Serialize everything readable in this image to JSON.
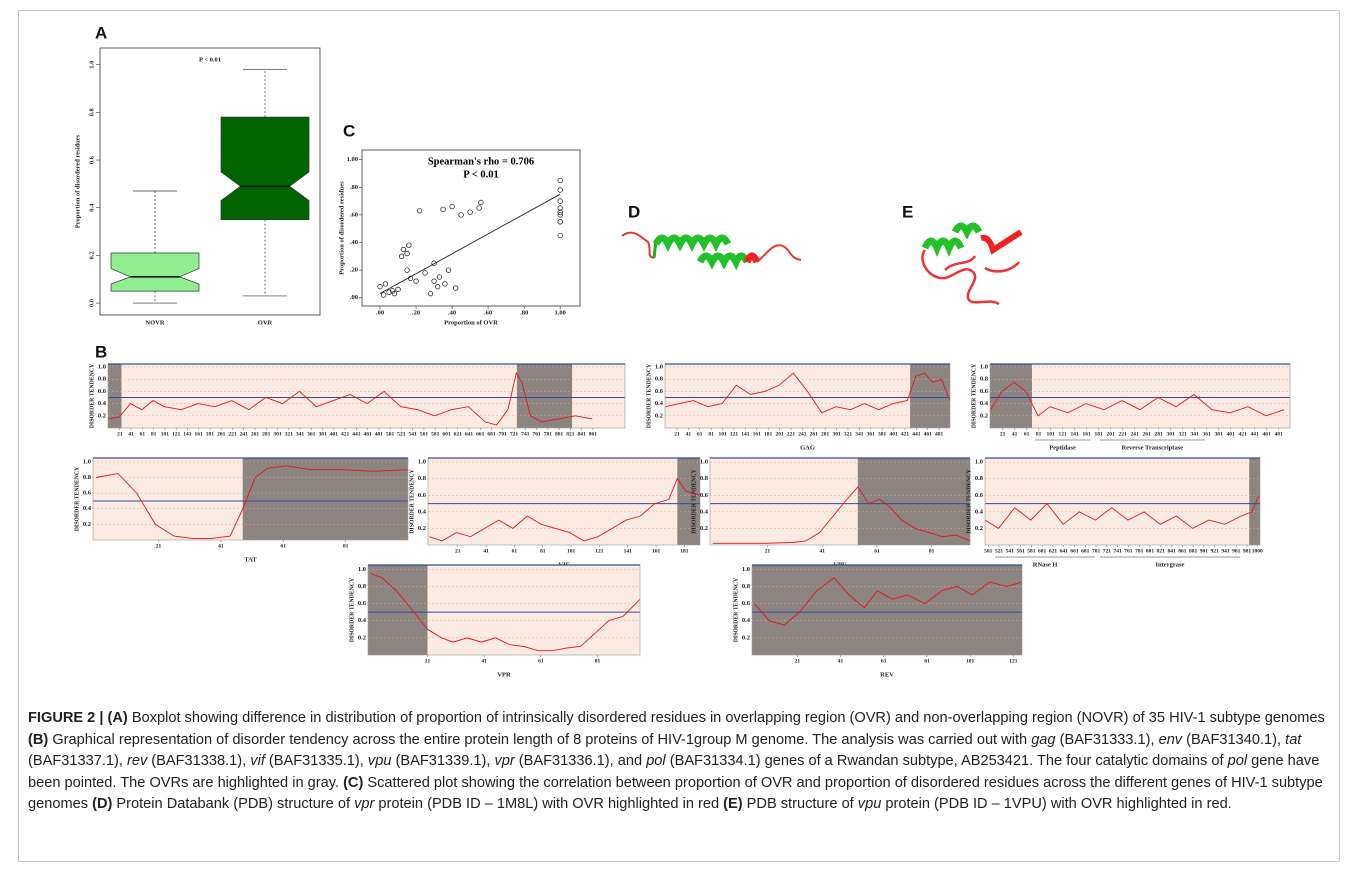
{
  "panel_labels": [
    "A",
    "B",
    "C",
    "D",
    "E"
  ],
  "chart_data": [
    {
      "type": "box",
      "ylabel": "Proportion of disordered residues",
      "annotation": "P < 0.01",
      "ylim": [
        -0.05,
        1.07
      ],
      "yticks": [
        {
          "value": 0,
          "label": "0.0"
        },
        0.2,
        0.4,
        0.6,
        0.8,
        {
          "value": 1,
          "label": "1.0"
        }
      ],
      "series": [
        {
          "name": "NOVR",
          "color": "#90ee90",
          "whisker_low": 0.0,
          "q1": 0.05,
          "median": 0.11,
          "q3": 0.21,
          "whisker_high": 0.47,
          "notch": [
            0.08,
            0.145
          ]
        },
        {
          "name": "OVR",
          "color": "#006400",
          "whisker_low": 0.03,
          "q1": 0.35,
          "median": 0.49,
          "q3": 0.78,
          "whisker_high": 0.98,
          "notch": [
            0.43,
            0.55
          ]
        }
      ]
    },
    {
      "type": "scatter",
      "title": "Spearman's rho = 0.706",
      "subtitle": "P < 0.01",
      "xlabel": "Proportion of OVR",
      "ylabel": "Proportion of disordered residues",
      "xlim": [
        -0.1,
        1.11
      ],
      "ylim": [
        -0.06,
        1.07
      ],
      "xticks": [
        {
          "value": 0,
          "label": ".00"
        },
        {
          "value": 0.2,
          "label": ".20"
        },
        {
          "value": 0.4,
          "label": ".40"
        },
        {
          "value": 0.6,
          "label": ".60"
        },
        {
          "value": 0.8,
          "label": ".80"
        },
        {
          "value": 1,
          "label": "1.00"
        }
      ],
      "yticks": [
        {
          "value": 0,
          "label": ".00"
        },
        {
          "value": 0.2,
          "label": ".20"
        },
        {
          "value": 0.4,
          "label": ".40"
        },
        {
          "value": 0.6,
          "label": ".60"
        },
        {
          "value": 0.8,
          "label": ".80"
        },
        {
          "value": 1,
          "label": "1.00"
        }
      ],
      "x": [
        0.0,
        0.02,
        0.03,
        0.05,
        0.07,
        0.08,
        0.1,
        0.12,
        0.13,
        0.15,
        0.15,
        0.16,
        0.17,
        0.2,
        0.22,
        0.25,
        0.28,
        0.3,
        0.3,
        0.32,
        0.33,
        0.35,
        0.36,
        0.38,
        0.4,
        0.42,
        0.45,
        0.5,
        0.55,
        0.56,
        1.0,
        1.0,
        1.0,
        1.0,
        1.0,
        1.0,
        1.0,
        1.0
      ],
      "values": [
        0.08,
        0.02,
        0.1,
        0.04,
        0.05,
        0.03,
        0.06,
        0.3,
        0.35,
        0.32,
        0.2,
        0.38,
        0.14,
        0.12,
        0.63,
        0.18,
        0.03,
        0.12,
        0.25,
        0.08,
        0.15,
        0.64,
        0.1,
        0.2,
        0.66,
        0.07,
        0.6,
        0.62,
        0.65,
        0.69,
        0.45,
        0.55,
        0.6,
        0.62,
        0.65,
        0.7,
        0.78,
        0.85
      ],
      "fit": {
        "x": [
          0,
          1
        ],
        "y": [
          0.03,
          0.75
        ]
      }
    },
    {
      "type": "line",
      "ylabel": "DISORDER TENDENCY",
      "color": "#e3151a",
      "threshold": 0.5,
      "xlim": [
        0,
        918
      ],
      "ylim": [
        0,
        1.05
      ],
      "yticks": [
        0.2,
        0.4,
        0.6,
        0.8,
        {
          "value": 1,
          "label": "1.0"
        }
      ],
      "xticks": [
        21,
        41,
        61,
        81,
        101,
        121,
        141,
        161,
        181,
        201,
        221,
        241,
        261,
        281,
        301,
        321,
        341,
        361,
        381,
        401,
        421,
        441,
        461,
        481,
        501,
        521,
        541,
        561,
        581,
        601,
        621,
        641,
        661,
        681,
        701,
        721,
        741,
        761,
        781,
        801,
        821,
        841,
        861
      ],
      "shade": [
        [
          0,
          24
        ],
        [
          726,
          824
        ]
      ],
      "x": [
        1,
        20,
        40,
        60,
        80,
        100,
        130,
        160,
        190,
        220,
        250,
        280,
        310,
        340,
        370,
        400,
        430,
        460,
        490,
        520,
        550,
        580,
        610,
        640,
        670,
        690,
        710,
        725,
        735,
        750,
        770,
        800,
        830,
        860
      ],
      "values": [
        0.15,
        0.18,
        0.4,
        0.3,
        0.45,
        0.35,
        0.3,
        0.4,
        0.35,
        0.45,
        0.3,
        0.5,
        0.4,
        0.6,
        0.35,
        0.45,
        0.55,
        0.4,
        0.6,
        0.35,
        0.3,
        0.2,
        0.3,
        0.35,
        0.1,
        0.05,
        0.3,
        0.9,
        0.75,
        0.2,
        0.1,
        0.15,
        0.2,
        0.15
      ]
    },
    {
      "type": "line",
      "ylabel": "DISORDER TENDENCY",
      "xlabel": "GAG",
      "color": "#e3151a",
      "threshold": 0.5,
      "xlim": [
        0,
        500
      ],
      "ylim": [
        0,
        1.05
      ],
      "yticks": [
        0.2,
        0.4,
        0.6,
        0.8,
        {
          "value": 1,
          "label": "1.0"
        }
      ],
      "xticks": [
        21,
        41,
        61,
        81,
        101,
        121,
        141,
        161,
        181,
        201,
        221,
        241,
        261,
        281,
        301,
        321,
        341,
        361,
        381,
        401,
        421,
        441,
        461,
        481
      ],
      "shade": [
        [
          430,
          500
        ]
      ],
      "x": [
        1,
        25,
        50,
        75,
        100,
        125,
        150,
        175,
        200,
        225,
        250,
        275,
        300,
        325,
        350,
        375,
        400,
        425,
        440,
        455,
        470,
        485,
        500
      ],
      "values": [
        0.35,
        0.4,
        0.45,
        0.35,
        0.4,
        0.7,
        0.55,
        0.6,
        0.7,
        0.9,
        0.6,
        0.25,
        0.35,
        0.3,
        0.4,
        0.3,
        0.4,
        0.45,
        0.85,
        0.9,
        0.75,
        0.8,
        0.45
      ]
    },
    {
      "type": "line",
      "ylabel": "DISORDER TENDENCY",
      "color": "#e3151a",
      "threshold": 0.5,
      "xlim": [
        0,
        500
      ],
      "ylim": [
        0,
        1.05
      ],
      "yticks": [
        0.2,
        0.4,
        0.6,
        0.8,
        {
          "value": 1,
          "label": "1.0"
        }
      ],
      "xticks": [
        21,
        41,
        61,
        81,
        101,
        121,
        141,
        161,
        181,
        201,
        221,
        241,
        261,
        281,
        301,
        321,
        341,
        361,
        381,
        401,
        421,
        441,
        461,
        481
      ],
      "shade": [
        [
          0,
          70
        ]
      ],
      "domains": [
        {
          "label": "Peptidase",
          "range": [
            75,
            167
          ]
        },
        {
          "label": "Reverse Transcriptase",
          "range": [
            183,
            358
          ]
        }
      ],
      "x": [
        1,
        20,
        40,
        60,
        80,
        100,
        130,
        160,
        190,
        220,
        250,
        280,
        310,
        340,
        370,
        400,
        430,
        460,
        490
      ],
      "values": [
        0.3,
        0.6,
        0.75,
        0.6,
        0.2,
        0.35,
        0.25,
        0.4,
        0.3,
        0.45,
        0.3,
        0.5,
        0.35,
        0.55,
        0.3,
        0.25,
        0.35,
        0.2,
        0.3
      ]
    },
    {
      "type": "line",
      "ylabel": "DISORDER TENDENCY",
      "xlabel": "TAT",
      "color": "#e3151a",
      "threshold": 0.5,
      "xlim": [
        0,
        101
      ],
      "ylim": [
        0,
        1.05
      ],
      "yticks": [
        0.2,
        0.4,
        0.6,
        0.8,
        {
          "value": 1,
          "label": "1.0"
        }
      ],
      "xticks": [
        21,
        41,
        61,
        81
      ],
      "shade": [
        [
          48,
          101
        ]
      ],
      "x": [
        1,
        8,
        14,
        20,
        26,
        32,
        38,
        44,
        48,
        52,
        56,
        62,
        70,
        80,
        90,
        101
      ],
      "values": [
        0.8,
        0.85,
        0.6,
        0.2,
        0.05,
        0.02,
        0.02,
        0.05,
        0.4,
        0.8,
        0.92,
        0.95,
        0.9,
        0.9,
        0.88,
        0.9
      ]
    },
    {
      "type": "line",
      "ylabel": "DISORDER TENDENCY",
      "xlabel": "VIF",
      "color": "#e3151a",
      "threshold": 0.5,
      "xlim": [
        0,
        192
      ],
      "ylim": [
        0,
        1.05
      ],
      "yticks": [
        0.2,
        0.4,
        0.6,
        0.8,
        {
          "value": 1,
          "label": "1.0"
        }
      ],
      "xticks": [
        21,
        41,
        61,
        81,
        101,
        121,
        141,
        161,
        181
      ],
      "shade": [
        [
          176,
          192
        ]
      ],
      "x": [
        1,
        10,
        20,
        30,
        40,
        50,
        60,
        70,
        80,
        90,
        100,
        110,
        120,
        130,
        140,
        150,
        160,
        170,
        176,
        182,
        192
      ],
      "values": [
        0.1,
        0.05,
        0.15,
        0.1,
        0.2,
        0.3,
        0.2,
        0.35,
        0.25,
        0.2,
        0.15,
        0.05,
        0.1,
        0.2,
        0.3,
        0.35,
        0.5,
        0.55,
        0.8,
        0.65,
        0.6
      ]
    },
    {
      "type": "line",
      "ylabel": "DISORDER TENDENCY",
      "xlabel": "VPU",
      "color": "#e3151a",
      "threshold": 0.5,
      "xlim": [
        0,
        95
      ],
      "ylim": [
        0,
        1.05
      ],
      "yticks": [
        0.2,
        0.4,
        0.6,
        0.8,
        {
          "value": 1,
          "label": "1.0"
        }
      ],
      "xticks": [
        21,
        41,
        61,
        81
      ],
      "shade": [
        [
          54,
          95
        ]
      ],
      "x": [
        1,
        10,
        20,
        30,
        35,
        40,
        45,
        50,
        54,
        58,
        62,
        66,
        70,
        75,
        80,
        85,
        90,
        95
      ],
      "values": [
        0.02,
        0.02,
        0.02,
        0.03,
        0.05,
        0.15,
        0.35,
        0.55,
        0.7,
        0.5,
        0.55,
        0.45,
        0.3,
        0.2,
        0.15,
        0.1,
        0.12,
        0.05
      ]
    },
    {
      "type": "line",
      "ylabel": "DISORDER TENDENCY",
      "color": "#e3151a",
      "threshold": 0.5,
      "xlim": [
        495,
        1005
      ],
      "ylim": [
        0,
        1.05
      ],
      "yticks": [
        0.2,
        0.4,
        0.6,
        0.8,
        {
          "value": 1,
          "label": "1.0"
        }
      ],
      "xticks": [
        501,
        521,
        541,
        561,
        581,
        601,
        621,
        641,
        661,
        681,
        701,
        721,
        741,
        761,
        781,
        801,
        821,
        841,
        861,
        881,
        901,
        921,
        941,
        961,
        981,
        1000
      ],
      "shade": [
        [
          985,
          1005
        ]
      ],
      "domains": [
        {
          "label": "RNase H",
          "range": [
            514,
            699
          ]
        },
        {
          "label": "Intergrase",
          "range": [
            708,
            968
          ]
        }
      ],
      "x": [
        495,
        520,
        550,
        580,
        610,
        640,
        670,
        700,
        730,
        760,
        790,
        820,
        850,
        880,
        910,
        940,
        970,
        990,
        1003
      ],
      "values": [
        0.3,
        0.2,
        0.45,
        0.3,
        0.5,
        0.25,
        0.4,
        0.3,
        0.45,
        0.3,
        0.4,
        0.25,
        0.35,
        0.2,
        0.3,
        0.25,
        0.35,
        0.4,
        0.6
      ]
    },
    {
      "type": "line",
      "ylabel": "DISORDER TENDENCY",
      "xlabel": "VPR",
      "color": "#e3151a",
      "threshold": 0.5,
      "xlim": [
        0,
        96
      ],
      "ylim": [
        0,
        1.05
      ],
      "yticks": [
        0.2,
        0.4,
        0.6,
        0.8,
        {
          "value": 1,
          "label": "1.0"
        }
      ],
      "xticks": [
        21,
        41,
        61,
        81
      ],
      "shade": [
        [
          0,
          21
        ]
      ],
      "x": [
        1,
        5,
        10,
        15,
        21,
        26,
        30,
        35,
        40,
        45,
        50,
        55,
        60,
        65,
        70,
        75,
        80,
        85,
        90,
        96
      ],
      "values": [
        0.95,
        0.9,
        0.75,
        0.55,
        0.3,
        0.2,
        0.15,
        0.2,
        0.15,
        0.2,
        0.12,
        0.1,
        0.05,
        0.05,
        0.08,
        0.1,
        0.25,
        0.4,
        0.45,
        0.65
      ]
    },
    {
      "type": "line",
      "ylabel": "DISORDER TENDENCY",
      "xlabel": "REV",
      "color": "#e3151a",
      "threshold": 0.5,
      "xlim": [
        0,
        125
      ],
      "ylim": [
        0,
        1.05
      ],
      "yticks": [
        0.2,
        0.4,
        0.6,
        0.8,
        {
          "value": 1,
          "label": "1.0"
        }
      ],
      "xticks": [
        21,
        41,
        61,
        81,
        101,
        121
      ],
      "shade": [
        [
          0,
          125
        ]
      ],
      "x": [
        1,
        8,
        15,
        22,
        30,
        38,
        45,
        52,
        58,
        65,
        72,
        80,
        88,
        95,
        102,
        110,
        118,
        125
      ],
      "values": [
        0.6,
        0.4,
        0.35,
        0.5,
        0.75,
        0.9,
        0.7,
        0.55,
        0.75,
        0.65,
        0.7,
        0.6,
        0.75,
        0.8,
        0.7,
        0.85,
        0.8,
        0.85
      ]
    }
  ],
  "caption": [
    {
      "text": "FIGURE 2 | (A)",
      "bold": true
    },
    {
      "text": " Boxplot showing difference in distribution of proportion of intrinsically disordered residues in overlapping region (OVR) and non-overlapping region (NOVR) of 35 HIV-1 subtype genomes "
    },
    {
      "text": "(B)",
      "bold": true
    },
    {
      "text": " Graphical representation of disorder tendency across the entire protein length of 8 proteins of HIV-1group M genome. The analysis was carried out with "
    },
    {
      "text": "gag",
      "italic": true
    },
    {
      "text": " (BAF31333.1), "
    },
    {
      "text": "env",
      "italic": true
    },
    {
      "text": " (BAF31340.1), "
    },
    {
      "text": "tat",
      "italic": true
    },
    {
      "text": " (BAF31337.1), "
    },
    {
      "text": "rev",
      "italic": true
    },
    {
      "text": " (BAF31338.1), "
    },
    {
      "text": "vif",
      "italic": true
    },
    {
      "text": " (BAF31335.1), "
    },
    {
      "text": "vpu",
      "italic": true
    },
    {
      "text": " (BAF31339.1), "
    },
    {
      "text": "vpr",
      "italic": true
    },
    {
      "text": " (BAF31336.1), and "
    },
    {
      "text": "pol",
      "italic": true
    },
    {
      "text": " (BAF31334.1) genes of a Rwandan subtype, AB253421. The four catalytic domains of "
    },
    {
      "text": "pol",
      "italic": true
    },
    {
      "text": " gene have been pointed. The OVRs are highlighted in gray. "
    },
    {
      "text": "(C)",
      "bold": true
    },
    {
      "text": " Scattered plot showing the correlation between proportion of OVR and proportion of disordered residues across the different genes of HIV-1 subtype genomes "
    },
    {
      "text": "(D)",
      "bold": true
    },
    {
      "text": " Protein Databank (PDB) structure of "
    },
    {
      "text": "vpr",
      "italic": true
    },
    {
      "text": " protein (PDB ID – 1M8L) with OVR highlighted in red "
    },
    {
      "text": "(E)",
      "bold": true
    },
    {
      "text": " PDB structure of "
    },
    {
      "text": "vpu",
      "italic": true
    },
    {
      "text": " protein (PDB ID – 1VPU) with OVR highlighted in red."
    }
  ]
}
